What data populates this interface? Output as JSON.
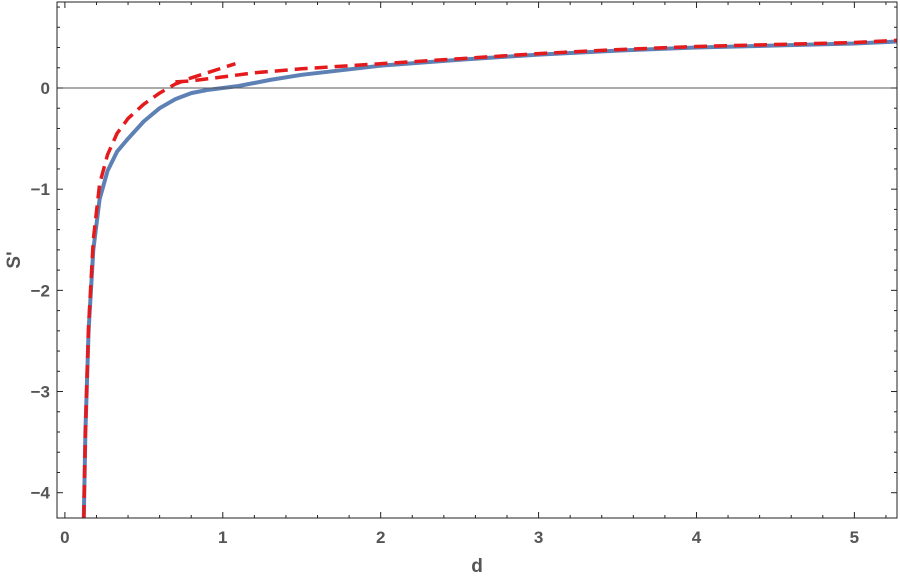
{
  "chart_data": {
    "type": "line",
    "xlabel": "d",
    "ylabel": "S'",
    "xlim": [
      -0.05,
      5.27
    ],
    "ylim": [
      -4.25,
      0.85
    ],
    "x_ticks": [
      {
        "value": 0,
        "label": "0"
      },
      {
        "value": 1,
        "label": "1"
      },
      {
        "value": 2,
        "label": "2"
      },
      {
        "value": 3,
        "label": "3"
      },
      {
        "value": 4,
        "label": "4"
      },
      {
        "value": 5,
        "label": "5"
      }
    ],
    "y_ticks": [
      {
        "value": 0,
        "label": "0"
      },
      {
        "value": -1,
        "label": "−1"
      },
      {
        "value": -2,
        "label": "−2"
      },
      {
        "value": -3,
        "label": "−3"
      },
      {
        "value": -4,
        "label": "−4"
      }
    ],
    "zero_line": true,
    "grid": false,
    "series": [
      {
        "style": "solid",
        "color": "#5E81B5",
        "x": [
          0.12,
          0.13,
          0.15,
          0.18,
          0.22,
          0.27,
          0.33,
          0.4,
          0.5,
          0.6,
          0.7,
          0.8,
          0.9,
          1.0,
          1.1,
          1.3,
          1.5,
          2.0,
          2.5,
          3.0,
          3.5,
          4.0,
          4.5,
          5.0,
          5.27
        ],
        "y": [
          -4.25,
          -3.4,
          -2.4,
          -1.6,
          -1.1,
          -0.82,
          -0.63,
          -0.5,
          -0.33,
          -0.2,
          -0.11,
          -0.05,
          -0.02,
          0.0,
          0.02,
          0.08,
          0.13,
          0.22,
          0.28,
          0.33,
          0.37,
          0.4,
          0.42,
          0.44,
          0.46
        ]
      },
      {
        "style": "dashed",
        "color": "#E41A1C",
        "x": [
          0.12,
          0.13,
          0.15,
          0.18,
          0.22,
          0.27,
          0.33,
          0.4,
          0.5,
          0.6,
          0.7,
          0.8,
          0.9,
          1.0,
          1.08
        ],
        "y": [
          -4.25,
          -3.4,
          -2.35,
          -1.5,
          -0.95,
          -0.66,
          -0.45,
          -0.3,
          -0.16,
          -0.05,
          0.04,
          0.1,
          0.15,
          0.2,
          0.24
        ]
      },
      {
        "style": "dashed",
        "color": "#E41A1C",
        "x": [
          0.7,
          0.8,
          0.9,
          1.0,
          1.2,
          1.5,
          2.0,
          2.5,
          3.0,
          3.5,
          4.0,
          4.5,
          5.0,
          5.27
        ],
        "y": [
          0.06,
          0.07,
          0.09,
          0.11,
          0.15,
          0.19,
          0.24,
          0.29,
          0.34,
          0.38,
          0.41,
          0.43,
          0.45,
          0.47
        ]
      }
    ]
  }
}
